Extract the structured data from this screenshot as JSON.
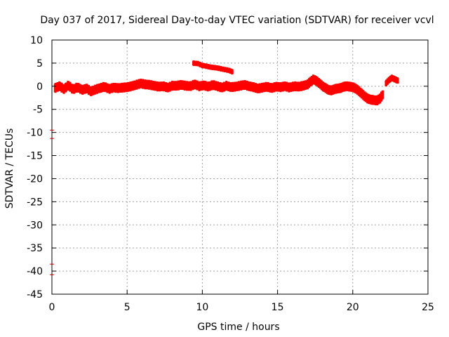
{
  "chart_data": {
    "type": "scatter",
    "title": "Day 037 of 2017, Sidereal Day-to-day VTEC variation (SDTVAR) for receiver vcvl",
    "xlabel": "GPS time / hours",
    "ylabel": "SDTVAR / TECUs",
    "xlim": [
      0,
      25
    ],
    "ylim": [
      -45,
      10
    ],
    "xticks": [
      0,
      5,
      10,
      15,
      20,
      25
    ],
    "yticks": [
      10,
      5,
      0,
      -5,
      -10,
      -15,
      -20,
      -25,
      -30,
      -35,
      -40,
      -45
    ],
    "grid": true,
    "legend": "none",
    "series": [
      {
        "color": "#ff0000",
        "marker": "plus",
        "band_halfwidth": 0.9,
        "points": [
          [
            0.2,
            -0.4
          ],
          [
            0.5,
            0.0
          ],
          [
            0.8,
            -0.6
          ],
          [
            1.1,
            0.2
          ],
          [
            1.4,
            -0.7
          ],
          [
            1.7,
            -0.2
          ],
          [
            2.0,
            -0.8
          ],
          [
            2.3,
            -0.5
          ],
          [
            2.6,
            -1.1
          ],
          [
            2.9,
            -0.7
          ],
          [
            3.2,
            -0.4
          ],
          [
            3.5,
            -0.1
          ],
          [
            3.8,
            -0.6
          ],
          [
            4.1,
            -0.3
          ],
          [
            4.4,
            -0.4
          ],
          [
            4.7,
            -0.3
          ],
          [
            5.0,
            -0.2
          ],
          [
            5.3,
            0.0
          ],
          [
            5.6,
            0.3
          ],
          [
            5.9,
            0.6
          ],
          [
            6.2,
            0.4
          ],
          [
            6.5,
            0.3
          ],
          [
            6.8,
            0.1
          ],
          [
            7.1,
            -0.1
          ],
          [
            7.4,
            0.0
          ],
          [
            7.7,
            -0.3
          ],
          [
            8.0,
            0.1
          ],
          [
            8.3,
            0.1
          ],
          [
            8.6,
            0.3
          ],
          [
            8.9,
            0.1
          ],
          [
            9.2,
            0.0
          ],
          [
            9.5,
            0.4
          ],
          [
            9.8,
            0.0
          ],
          [
            10.1,
            0.2
          ],
          [
            10.4,
            -0.1
          ],
          [
            10.7,
            0.3
          ],
          [
            11.0,
            0.0
          ],
          [
            11.3,
            -0.3
          ],
          [
            11.6,
            0.1
          ],
          [
            11.9,
            -0.2
          ],
          [
            12.2,
            -0.1
          ],
          [
            12.5,
            0.1
          ],
          [
            12.8,
            0.3
          ],
          [
            13.1,
            0.0
          ],
          [
            13.4,
            -0.2
          ],
          [
            13.7,
            -0.5
          ],
          [
            14.0,
            -0.3
          ],
          [
            14.3,
            -0.1
          ],
          [
            14.6,
            -0.4
          ],
          [
            14.9,
            -0.1
          ],
          [
            15.2,
            -0.2
          ],
          [
            15.5,
            0.0
          ],
          [
            15.8,
            -0.3
          ],
          [
            16.1,
            0.0
          ],
          [
            16.4,
            -0.1
          ],
          [
            16.7,
            0.1
          ],
          [
            17.0,
            0.4
          ],
          [
            17.2,
            1.0
          ],
          [
            17.4,
            1.5
          ],
          [
            17.6,
            1.1
          ],
          [
            17.8,
            0.6
          ],
          [
            18.0,
            0.0
          ],
          [
            18.2,
            -0.4
          ],
          [
            18.4,
            -0.8
          ],
          [
            18.6,
            -0.9
          ],
          [
            18.8,
            -0.6
          ],
          [
            19.0,
            -0.5
          ],
          [
            19.2,
            -0.4
          ],
          [
            19.4,
            -0.1
          ],
          [
            19.6,
            0.0
          ],
          [
            19.8,
            -0.1
          ],
          [
            20.0,
            -0.2
          ],
          [
            20.2,
            -0.5
          ],
          [
            20.4,
            -1.0
          ],
          [
            20.6,
            -1.6
          ],
          [
            20.8,
            -2.2
          ],
          [
            21.0,
            -2.7
          ],
          [
            21.2,
            -2.9
          ],
          [
            21.4,
            -3.0
          ],
          [
            21.6,
            -3.1
          ],
          [
            21.8,
            -2.7
          ],
          [
            22.0,
            -1.8
          ]
        ]
      },
      {
        "color": "#ff0000",
        "marker": "plus",
        "band_halfwidth": 0.5,
        "points": [
          [
            9.4,
            5.0
          ],
          [
            9.7,
            4.9
          ],
          [
            10.0,
            4.5
          ],
          [
            10.3,
            4.3
          ],
          [
            10.6,
            4.1
          ],
          [
            10.9,
            4.0
          ],
          [
            11.2,
            3.8
          ],
          [
            11.5,
            3.6
          ],
          [
            11.8,
            3.4
          ],
          [
            12.0,
            3.1
          ]
        ]
      },
      {
        "color": "#ff0000",
        "marker": "plus",
        "band_halfwidth": 0.6,
        "points": [
          [
            22.2,
            0.6
          ],
          [
            22.4,
            1.3
          ],
          [
            22.6,
            1.8
          ],
          [
            22.8,
            1.5
          ],
          [
            23.0,
            1.2
          ]
        ]
      },
      {
        "color": "#ff0000",
        "marker": "plus",
        "band_halfwidth": 0.0,
        "points": [
          [
            0.0,
            -9.5
          ],
          [
            0.0,
            -11.3
          ],
          [
            0.0,
            -38.5
          ],
          [
            0.0,
            -40.8
          ]
        ]
      }
    ]
  }
}
